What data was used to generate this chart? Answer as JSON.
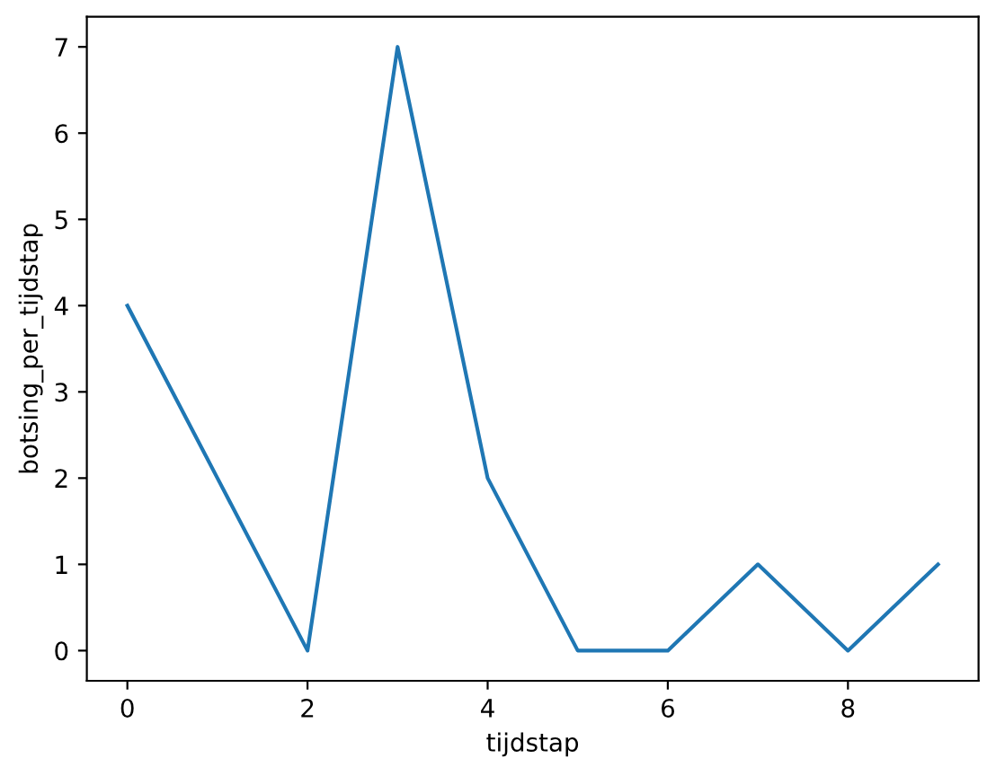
{
  "chart_data": {
    "type": "line",
    "xlabel": "tijdstap",
    "ylabel": "botsing_per_tijdstap",
    "x": [
      0,
      1,
      2,
      3,
      4,
      5,
      6,
      7,
      8,
      9
    ],
    "series": [
      {
        "color": "#1f77b4",
        "values": [
          4,
          2,
          0,
          7,
          2,
          0,
          0,
          1,
          0,
          1
        ]
      }
    ],
    "xlim": [
      -0.45,
      9.45
    ],
    "ylim": [
      -0.35,
      7.35
    ],
    "xticks": [
      0,
      2,
      4,
      6,
      8
    ],
    "yticks": [
      0,
      1,
      2,
      3,
      4,
      5,
      6,
      7
    ],
    "grid": false,
    "marker": "none",
    "line_style": "solid"
  }
}
